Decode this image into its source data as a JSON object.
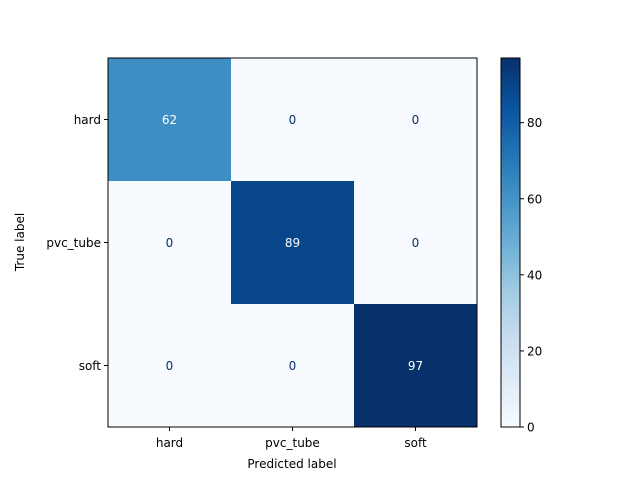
{
  "chart_data": {
    "type": "heatmap",
    "x_categories": [
      "hard",
      "pvc_tube",
      "soft"
    ],
    "y_categories": [
      "hard",
      "pvc_tube",
      "soft"
    ],
    "values": [
      [
        62,
        0,
        0
      ],
      [
        0,
        89,
        0
      ],
      [
        0,
        0,
        97
      ]
    ],
    "xlabel": "Predicted label",
    "ylabel": "True label",
    "colormap": "Blues",
    "color_range": [
      0,
      97
    ],
    "colorbar_ticks": [
      0,
      20,
      40,
      60,
      80
    ],
    "grid": false,
    "text_colors": {
      "light": "#ffffff",
      "dark": "#08306b"
    }
  }
}
